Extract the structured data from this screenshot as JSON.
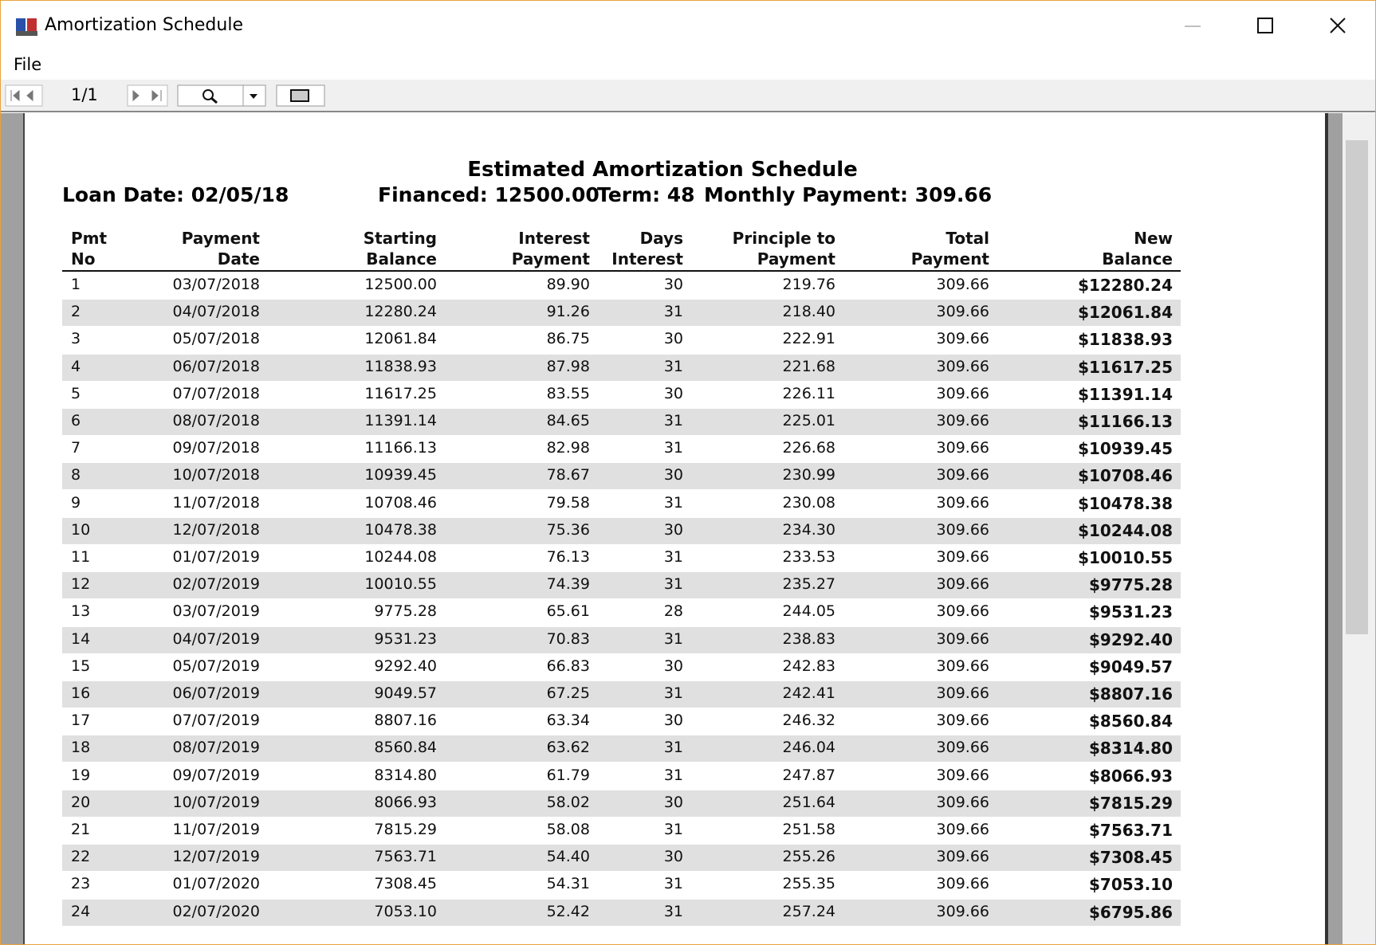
{
  "window": {
    "title": "Amortization Schedule"
  },
  "menu": [
    "File"
  ],
  "toolbar": {
    "page": "1/1"
  },
  "report": {
    "title": "Estimated Amortization Schedule",
    "loan_date": "Loan Date: 02/05/18",
    "financed": "Financed: 12500.00",
    "term": "Term: 48",
    "monthly_payment": "Monthly Payment: 309.66"
  },
  "table": {
    "headers": [
      [
        "Pmt",
        "No"
      ],
      [
        "Payment",
        "Date"
      ],
      [
        "Starting",
        "Balance"
      ],
      [
        "Interest",
        "Payment"
      ],
      [
        "Days",
        "Interest"
      ],
      [
        "Principle to",
        "Payment"
      ],
      [
        "Total",
        "Payment"
      ],
      [
        "New",
        "Balance"
      ]
    ],
    "rows": [
      [
        "1",
        "03/07/2018",
        "12500.00",
        "89.90",
        "30",
        "219.76",
        "309.66",
        "$12280.24"
      ],
      [
        "2",
        "04/07/2018",
        "12280.24",
        "91.26",
        "31",
        "218.40",
        "309.66",
        "$12061.84"
      ],
      [
        "3",
        "05/07/2018",
        "12061.84",
        "86.75",
        "30",
        "222.91",
        "309.66",
        "$11838.93"
      ],
      [
        "4",
        "06/07/2018",
        "11838.93",
        "87.98",
        "31",
        "221.68",
        "309.66",
        "$11617.25"
      ],
      [
        "5",
        "07/07/2018",
        "11617.25",
        "83.55",
        "30",
        "226.11",
        "309.66",
        "$11391.14"
      ],
      [
        "6",
        "08/07/2018",
        "11391.14",
        "84.65",
        "31",
        "225.01",
        "309.66",
        "$11166.13"
      ],
      [
        "7",
        "09/07/2018",
        "11166.13",
        "82.98",
        "31",
        "226.68",
        "309.66",
        "$10939.45"
      ],
      [
        "8",
        "10/07/2018",
        "10939.45",
        "78.67",
        "30",
        "230.99",
        "309.66",
        "$10708.46"
      ],
      [
        "9",
        "11/07/2018",
        "10708.46",
        "79.58",
        "31",
        "230.08",
        "309.66",
        "$10478.38"
      ],
      [
        "10",
        "12/07/2018",
        "10478.38",
        "75.36",
        "30",
        "234.30",
        "309.66",
        "$10244.08"
      ],
      [
        "11",
        "01/07/2019",
        "10244.08",
        "76.13",
        "31",
        "233.53",
        "309.66",
        "$10010.55"
      ],
      [
        "12",
        "02/07/2019",
        "10010.55",
        "74.39",
        "31",
        "235.27",
        "309.66",
        "$9775.28"
      ],
      [
        "13",
        "03/07/2019",
        "9775.28",
        "65.61",
        "28",
        "244.05",
        "309.66",
        "$9531.23"
      ],
      [
        "14",
        "04/07/2019",
        "9531.23",
        "70.83",
        "31",
        "238.83",
        "309.66",
        "$9292.40"
      ],
      [
        "15",
        "05/07/2019",
        "9292.40",
        "66.83",
        "30",
        "242.83",
        "309.66",
        "$9049.57"
      ],
      [
        "16",
        "06/07/2019",
        "9049.57",
        "67.25",
        "31",
        "242.41",
        "309.66",
        "$8807.16"
      ],
      [
        "17",
        "07/07/2019",
        "8807.16",
        "63.34",
        "30",
        "246.32",
        "309.66",
        "$8560.84"
      ],
      [
        "18",
        "08/07/2019",
        "8560.84",
        "63.62",
        "31",
        "246.04",
        "309.66",
        "$8314.80"
      ],
      [
        "19",
        "09/07/2019",
        "8314.80",
        "61.79",
        "31",
        "247.87",
        "309.66",
        "$8066.93"
      ],
      [
        "20",
        "10/07/2019",
        "8066.93",
        "58.02",
        "30",
        "251.64",
        "309.66",
        "$7815.29"
      ],
      [
        "21",
        "11/07/2019",
        "7815.29",
        "58.08",
        "31",
        "251.58",
        "309.66",
        "$7563.71"
      ],
      [
        "22",
        "12/07/2019",
        "7563.71",
        "54.40",
        "30",
        "255.26",
        "309.66",
        "$7308.45"
      ],
      [
        "23",
        "01/07/2020",
        "7308.45",
        "54.31",
        "31",
        "255.35",
        "309.66",
        "$7053.10"
      ],
      [
        "24",
        "02/07/2020",
        "7053.10",
        "52.42",
        "31",
        "257.24",
        "309.66",
        "$6795.86"
      ]
    ]
  }
}
